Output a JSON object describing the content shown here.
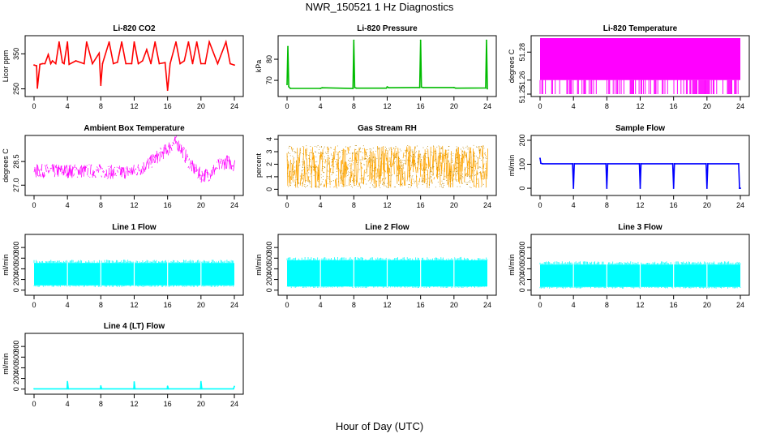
{
  "title": "NWR_150521  1 Hz Diagnostics",
  "xlabel": "Hour of Day (UTC)",
  "chart_data": [
    {
      "type": "line",
      "title": "Li-820 CO2",
      "xlabel": "",
      "ylabel": "Licor ppm",
      "color": "#ff0000",
      "xlim": [
        0,
        24
      ],
      "xticks": [
        0,
        4,
        8,
        12,
        16,
        20,
        24
      ],
      "ylim": [
        235,
        395
      ],
      "yticks": [
        250,
        350
      ],
      "series": [
        {
          "x": [
            0,
            0.3,
            0.4,
            0.7,
            1,
            1.3,
            1.7,
            2,
            2.2,
            2.6,
            3,
            3.4,
            3.6,
            4,
            4.2,
            5,
            6,
            6.3,
            7,
            7.8,
            8.0,
            8.2,
            9,
            9.5,
            10,
            10.5,
            11,
            11.7,
            12,
            12.5,
            13,
            13.5,
            14,
            14.5,
            15,
            15.7,
            16,
            16.3,
            17,
            17.5,
            18,
            18.5,
            19,
            19.5,
            20,
            20.5,
            21,
            22,
            23,
            23.5,
            24
          ],
          "y": [
            318,
            316,
            252,
            320,
            322,
            322,
            348,
            322,
            330,
            322,
            384,
            325,
            322,
            384,
            320,
            330,
            322,
            384,
            322,
            352,
            260,
            322,
            384,
            322,
            326,
            384,
            322,
            322,
            384,
            322,
            330,
            362,
            322,
            384,
            322,
            325,
            246,
            322,
            384,
            322,
            330,
            384,
            322,
            384,
            322,
            322,
            384,
            322,
            384,
            322,
            318
          ]
        }
      ]
    },
    {
      "type": "line",
      "title": "Li-820 Pressure",
      "xlabel": "",
      "ylabel": "kPa",
      "color": "#00bb00",
      "xlim": [
        0,
        24
      ],
      "xticks": [
        0,
        4,
        8,
        12,
        16,
        20,
        24
      ],
      "ylim": [
        63.5,
        90
      ],
      "yticks": [
        70,
        80
      ],
      "series": [
        {
          "x": [
            0,
            0.1,
            0.2,
            0.4,
            4,
            4.2,
            7.9,
            8.0,
            8.1,
            8.3,
            11.9,
            12.0,
            12.2,
            15.9,
            16.0,
            16.1,
            16.3,
            20,
            20.2,
            23.8,
            23.9,
            24
          ],
          "y": [
            68,
            86,
            67,
            66.2,
            66.2,
            66.5,
            66.2,
            89,
            66.6,
            66.3,
            66.3,
            66.9,
            66.5,
            66.6,
            89,
            66.8,
            66.6,
            66.6,
            66.3,
            66.4,
            89,
            66
          ]
        }
      ]
    },
    {
      "type": "area",
      "title": "Li-820 Temperature",
      "xlabel": "",
      "ylabel": "degrees C",
      "color": "#ff00ff",
      "xlim": [
        0,
        24
      ],
      "xticks": [
        0,
        4,
        8,
        12,
        16,
        20,
        24
      ],
      "ylim": [
        51.25,
        51.29
      ],
      "yticks": [
        51.25,
        51.26,
        51.28
      ],
      "ytick_labels": [
        "51.25",
        "51.26",
        "51.28"
      ],
      "series": [
        {
          "x": [
            0,
            24
          ],
          "upper": [
            51.29,
            51.29
          ],
          "lower": [
            51.26,
            51.26
          ],
          "dropouts_to": 51.25
        }
      ]
    },
    {
      "type": "line",
      "title": "Ambient Box Temperature",
      "xlabel": "",
      "ylabel": "degrees C",
      "color": "#ff00ff",
      "xlim": [
        0,
        24
      ],
      "xticks": [
        0,
        4,
        8,
        12,
        16,
        20,
        24
      ],
      "ylim": [
        26.5,
        30
      ],
      "yticks": [
        27.0,
        28.5
      ],
      "ytick_labels": [
        "27.0",
        "28.5"
      ],
      "series": [
        {
          "x": [
            0,
            2,
            4,
            6,
            8,
            10,
            12,
            13,
            14,
            15,
            16,
            16.5,
            17,
            17.5,
            18,
            19,
            20,
            21,
            22,
            23,
            24
          ],
          "y": [
            27.9,
            27.9,
            27.9,
            27.9,
            27.9,
            27.8,
            27.9,
            28.1,
            28.5,
            28.9,
            29.3,
            29.6,
            29.7,
            29.4,
            28.9,
            28.1,
            27.6,
            27.7,
            28.2,
            28.5,
            28.3
          ],
          "noise": 0.45
        }
      ]
    },
    {
      "type": "line",
      "title": "Gas Stream RH",
      "xlabel": "",
      "ylabel": "percent",
      "color": "#ffa500",
      "xlim": [
        0,
        24
      ],
      "xticks": [
        0,
        4,
        8,
        12,
        16,
        20,
        24
      ],
      "ylim": [
        -0.3,
        4.1
      ],
      "yticks": [
        0,
        1,
        2,
        3,
        4
      ],
      "series": [
        {
          "x": [
            0,
            24
          ],
          "y": [
            1.8,
            1.8
          ],
          "noise": 1.7
        }
      ]
    },
    {
      "type": "line",
      "title": "Sample Flow",
      "xlabel": "",
      "ylabel": "ml/min",
      "color": "#0000ff",
      "xlim": [
        0,
        24
      ],
      "xticks": [
        0,
        4,
        8,
        12,
        16,
        20,
        24
      ],
      "ylim": [
        -20,
        210
      ],
      "yticks": [
        0,
        100,
        200
      ],
      "series": [
        {
          "x": [
            0,
            0.1,
            0.3,
            3.9,
            4.0,
            4.1,
            7.9,
            8.0,
            8.1,
            11.9,
            12.0,
            12.1,
            15.9,
            16.0,
            16.1,
            19.9,
            20.0,
            20.1,
            23.8,
            23.9,
            24
          ],
          "y": [
            125,
            104,
            102,
            102,
            0,
            102,
            102,
            0,
            102,
            102,
            0,
            102,
            102,
            0,
            102,
            102,
            0,
            102,
            102,
            0,
            0
          ]
        }
      ]
    },
    {
      "type": "area",
      "title": "Line 1 Flow",
      "xlabel": "",
      "ylabel": "ml/min",
      "color": "#00ffff",
      "xlim": [
        0,
        24
      ],
      "xticks": [
        0,
        4,
        8,
        12,
        16,
        20,
        24
      ],
      "ylim": [
        -50,
        1000
      ],
      "yticks": [
        0,
        200,
        400,
        600,
        800
      ],
      "series": [
        {
          "x": [
            0,
            24
          ],
          "upper": [
            510,
            510
          ],
          "lower": [
            90,
            90
          ],
          "gaps_at": [
            4,
            8,
            12,
            16,
            20
          ]
        }
      ]
    },
    {
      "type": "area",
      "title": "Line 2 Flow",
      "xlabel": "",
      "ylabel": "ml/min",
      "color": "#00ffff",
      "xlim": [
        0,
        24
      ],
      "xticks": [
        0,
        4,
        8,
        12,
        16,
        20,
        24
      ],
      "ylim": [
        -50,
        1000
      ],
      "yticks": [
        0,
        200,
        400,
        600,
        800
      ],
      "series": [
        {
          "x": [
            0,
            24
          ],
          "upper": [
            560,
            560
          ],
          "lower": [
            70,
            70
          ],
          "gaps_at": [
            4,
            8,
            12,
            16,
            20
          ]
        }
      ]
    },
    {
      "type": "area",
      "title": "Line 3 Flow",
      "xlabel": "",
      "ylabel": "ml/min",
      "color": "#00ffff",
      "xlim": [
        0,
        24
      ],
      "xticks": [
        0,
        4,
        8,
        12,
        16,
        20,
        24
      ],
      "ylim": [
        -50,
        1000
      ],
      "yticks": [
        0,
        200,
        400,
        600,
        800
      ],
      "series": [
        {
          "x": [
            0,
            24
          ],
          "upper": [
            480,
            480
          ],
          "lower": [
            60,
            60
          ],
          "gaps_at": [
            4,
            8,
            12,
            16,
            20
          ]
        }
      ]
    },
    {
      "type": "line",
      "title": "Line 4 (LT) Flow",
      "xlabel": "",
      "ylabel": "ml/min",
      "color": "#00ffff",
      "xlim": [
        0,
        24
      ],
      "xticks": [
        0,
        4,
        8,
        12,
        16,
        20,
        24
      ],
      "ylim": [
        -50,
        1000
      ],
      "yticks": [
        0,
        200,
        400,
        600,
        800
      ],
      "series": [
        {
          "x": [
            0,
            3.95,
            4.0,
            4.1,
            7.95,
            8.0,
            8.1,
            11.95,
            12.0,
            12.1,
            15.95,
            16.0,
            16.1,
            19.95,
            20.0,
            20.1,
            23.9,
            24
          ],
          "y": [
            5,
            5,
            140,
            5,
            5,
            60,
            5,
            5,
            135,
            5,
            5,
            55,
            5,
            5,
            140,
            5,
            5,
            50
          ]
        }
      ]
    }
  ]
}
